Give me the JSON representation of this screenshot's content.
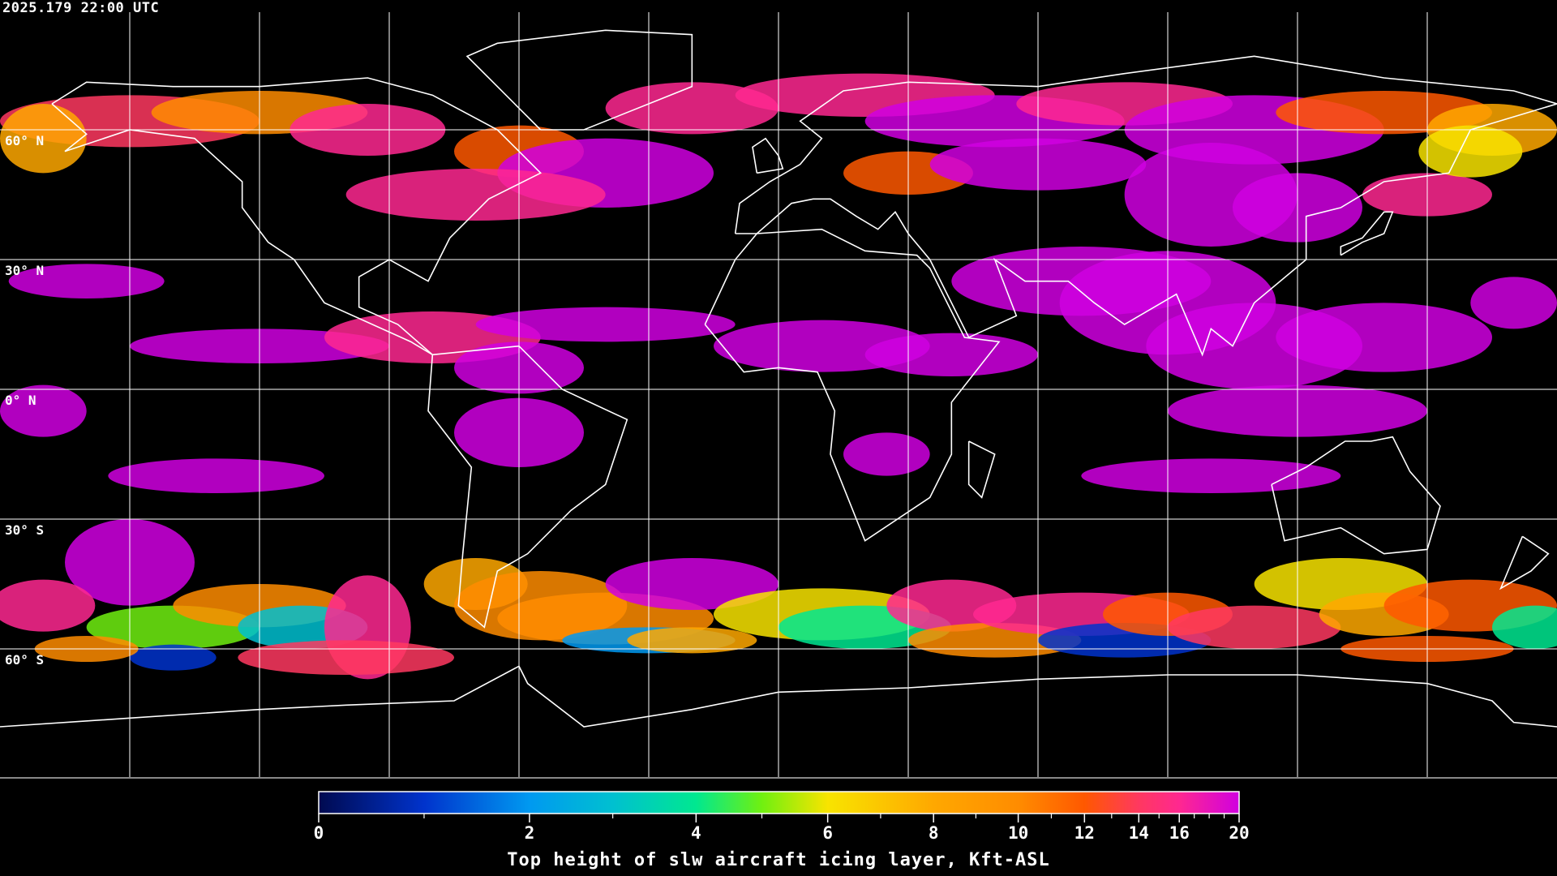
{
  "timestamp": "2025.179 22:00 UTC",
  "map": {
    "projection": "equirectangular",
    "lon_range": [
      -180,
      180
    ],
    "lat_range": [
      -90,
      90
    ],
    "grid_spacing_deg": 30,
    "grid_color": "#ffffff",
    "coastline_color": "#ffffff",
    "background_color": "#000000",
    "lat_labels": [
      "60° N",
      "30° N",
      "0° N",
      "30° S",
      "60° S"
    ]
  },
  "colorbar": {
    "title": "Top height of slw aircraft icing layer, Kft-ASL",
    "min": 0,
    "max": 20,
    "tick_labels": [
      "0",
      "2",
      "4",
      "6",
      "8",
      "10",
      "12",
      "14",
      "16",
      "20"
    ],
    "minor_ticks": [
      1,
      3,
      5,
      7,
      9,
      11,
      13,
      15,
      17,
      18,
      19
    ],
    "color_stops": [
      {
        "value": 0,
        "color": "#000a50"
      },
      {
        "value": 1,
        "color": "#0033cc"
      },
      {
        "value": 2,
        "color": "#0099f0"
      },
      {
        "value": 3,
        "color": "#00c0d0"
      },
      {
        "value": 4,
        "color": "#00e890"
      },
      {
        "value": 5,
        "color": "#70f010"
      },
      {
        "value": 6,
        "color": "#f8e400"
      },
      {
        "value": 8,
        "color": "#ffa800"
      },
      {
        "value": 10,
        "color": "#ff8c00"
      },
      {
        "value": 12,
        "color": "#ff5800"
      },
      {
        "value": 14,
        "color": "#ff3860"
      },
      {
        "value": 16,
        "color": "#ff2890"
      },
      {
        "value": 20,
        "color": "#d000e0"
      }
    ]
  }
}
